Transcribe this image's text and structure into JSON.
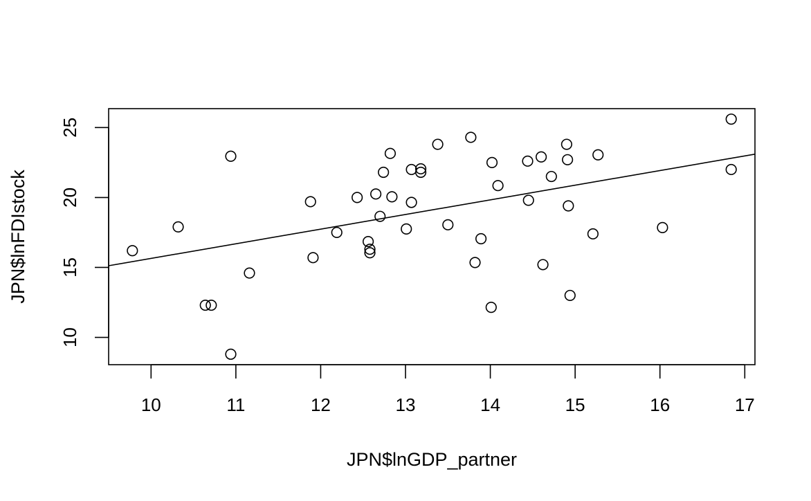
{
  "chart_data": {
    "type": "scatter",
    "title": "",
    "xlabel": "JPN$lnGDP_partner",
    "ylabel": "JPN$lnFDIstock",
    "xlim": [
      9.5,
      17.12
    ],
    "ylim": [
      8.05,
      26.35
    ],
    "xticks": [
      10,
      11,
      12,
      13,
      14,
      15,
      16,
      17
    ],
    "yticks": [
      10,
      15,
      20,
      25
    ],
    "grid": false,
    "series": [
      {
        "points": [
          [
            9.78,
            16.2
          ],
          [
            10.32,
            17.9
          ],
          [
            10.64,
            12.3
          ],
          [
            10.71,
            12.3
          ],
          [
            10.94,
            22.95
          ],
          [
            10.94,
            8.8
          ],
          [
            11.16,
            14.6
          ],
          [
            11.88,
            19.7
          ],
          [
            11.91,
            15.7
          ],
          [
            12.19,
            17.5
          ],
          [
            12.43,
            20.0
          ],
          [
            12.56,
            16.85
          ],
          [
            12.58,
            16.05
          ],
          [
            12.58,
            16.3
          ],
          [
            12.65,
            20.25
          ],
          [
            12.7,
            18.65
          ],
          [
            12.74,
            21.8
          ],
          [
            12.82,
            23.15
          ],
          [
            12.84,
            20.05
          ],
          [
            13.01,
            17.75
          ],
          [
            13.07,
            22.0
          ],
          [
            13.07,
            19.65
          ],
          [
            13.18,
            22.05
          ],
          [
            13.18,
            21.8
          ],
          [
            13.38,
            23.8
          ],
          [
            13.5,
            18.05
          ],
          [
            13.77,
            24.3
          ],
          [
            13.82,
            15.35
          ],
          [
            13.89,
            17.05
          ],
          [
            14.01,
            12.15
          ],
          [
            14.02,
            22.5
          ],
          [
            14.09,
            20.85
          ],
          [
            14.44,
            22.6
          ],
          [
            14.45,
            19.8
          ],
          [
            14.6,
            22.9
          ],
          [
            14.62,
            15.2
          ],
          [
            14.72,
            21.5
          ],
          [
            14.9,
            23.8
          ],
          [
            14.91,
            22.7
          ],
          [
            14.92,
            19.4
          ],
          [
            14.94,
            13.0
          ],
          [
            15.21,
            17.4
          ],
          [
            15.27,
            23.05
          ],
          [
            16.03,
            17.85
          ],
          [
            16.84,
            25.6
          ],
          [
            16.84,
            22.0
          ]
        ]
      }
    ],
    "regression_line": {
      "intercept": 5.18,
      "slope": 1.0465
    }
  }
}
